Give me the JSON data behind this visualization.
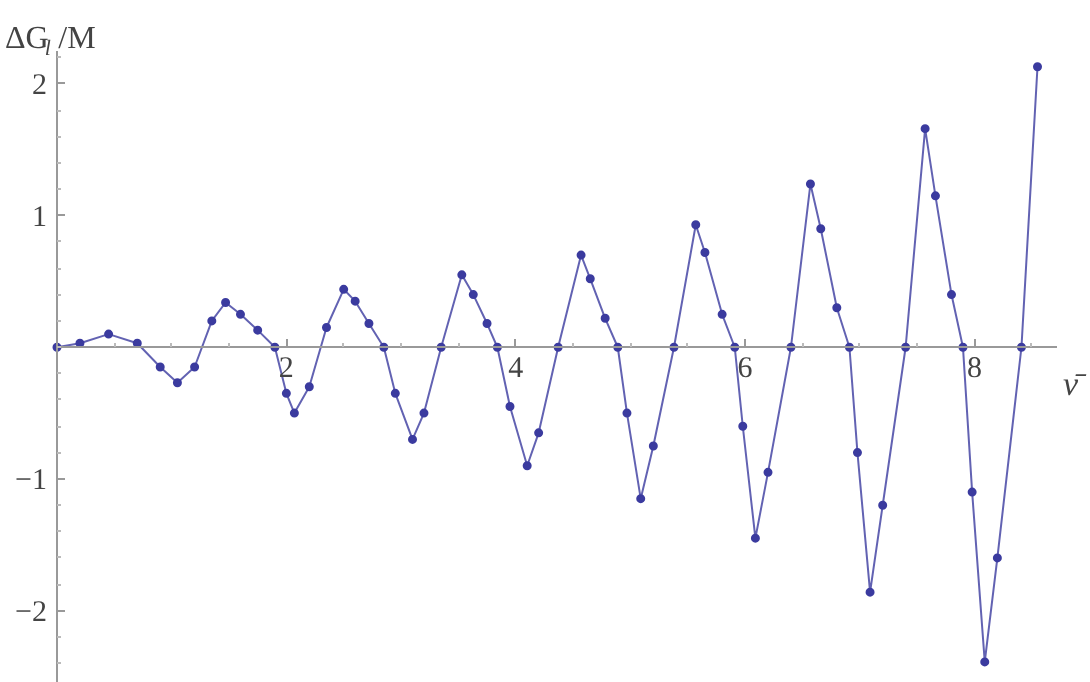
{
  "chart_data": {
    "type": "line",
    "xlabel": "ν̄",
    "ylabel": "ΔG$_{l}$/M",
    "x": [
      0,
      0.2,
      0.45,
      0.7,
      0.9,
      1.05,
      1.2,
      1.35,
      1.47,
      1.6,
      1.75,
      1.9,
      2.0,
      2.07,
      2.2,
      2.35,
      2.5,
      2.6,
      2.72,
      2.85,
      2.95,
      3.1,
      3.2,
      3.35,
      3.53,
      3.63,
      3.75,
      3.84,
      3.95,
      4.1,
      4.2,
      4.37,
      4.57,
      4.65,
      4.78,
      4.89,
      4.97,
      5.09,
      5.2,
      5.38,
      5.57,
      5.65,
      5.8,
      5.91,
      5.98,
      6.09,
      6.2,
      6.4,
      6.57,
      6.66,
      6.8,
      6.91,
      6.98,
      7.09,
      7.2,
      7.4,
      7.57,
      7.66,
      7.8,
      7.9,
      7.98,
      8.09,
      8.2,
      8.41,
      8.55
    ],
    "series": [
      {
        "color": "#3b3b9f",
        "values": [
          0,
          0.03,
          0.1,
          0.03,
          -0.15,
          -0.27,
          -0.15,
          0.2,
          0.34,
          0.25,
          0.13,
          0,
          -0.35,
          -0.5,
          -0.3,
          0.15,
          0.44,
          0.35,
          0.18,
          0,
          -0.35,
          -0.7,
          -0.5,
          0,
          0.55,
          0.4,
          0.18,
          0,
          -0.45,
          -0.9,
          -0.65,
          0,
          0.7,
          0.52,
          0.22,
          0,
          -0.5,
          -1.15,
          -0.75,
          0,
          0.93,
          0.72,
          0.25,
          0,
          -0.6,
          -1.45,
          -0.95,
          0,
          1.24,
          0.9,
          0.3,
          0,
          -0.8,
          -1.86,
          -1.2,
          0,
          1.66,
          1.15,
          0.4,
          0,
          -1.1,
          -2.39,
          -1.6,
          0,
          2.13
        ]
      }
    ],
    "xlim": [
      0,
      8.72
    ],
    "ylim": [
      -2.55,
      2.25
    ],
    "xticks": [
      2,
      4,
      6,
      8
    ],
    "yticks": [
      -2,
      -1,
      1,
      2
    ],
    "marker": "circle"
  }
}
